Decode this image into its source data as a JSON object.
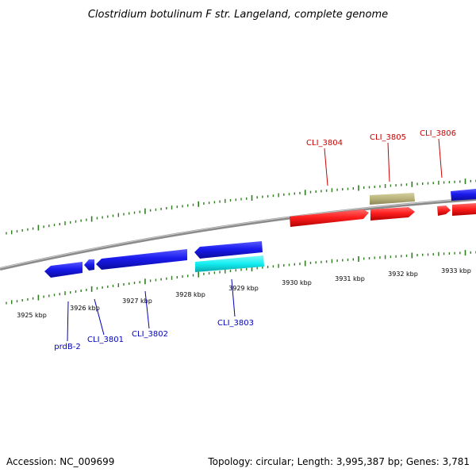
{
  "title": "Clostridium botulinum F str. Langeland, complete genome",
  "footer": {
    "accession": "Accession: NC_009699",
    "summary": "Topology: circular; Length: 3,995,387 bp; Genes: 3,781"
  },
  "colors": {
    "backbone": "#8a8a8a",
    "tick": "#2e7d1e",
    "forward_gene": "#ff1f1f",
    "reverse_gene": "#1a1aee",
    "forward_label": "#cc0000",
    "reverse_label": "#0000bb",
    "rna": "#b8b27a",
    "cyan_feature": "#12eef0"
  },
  "axis_labels": [
    "3925 kbp",
    "3926 kbp",
    "3927 kbp",
    "3928 kbp",
    "3929 kbp",
    "3930 kbp",
    "3931 kbp",
    "3932 kbp",
    "3933 kbp"
  ],
  "forward_labels": [
    "CLI_3804",
    "CLI_3805",
    "CLI_3806"
  ],
  "reverse_labels": [
    "prdB-2",
    "CLI_3801",
    "CLI_3802",
    "CLI_3803"
  ]
}
